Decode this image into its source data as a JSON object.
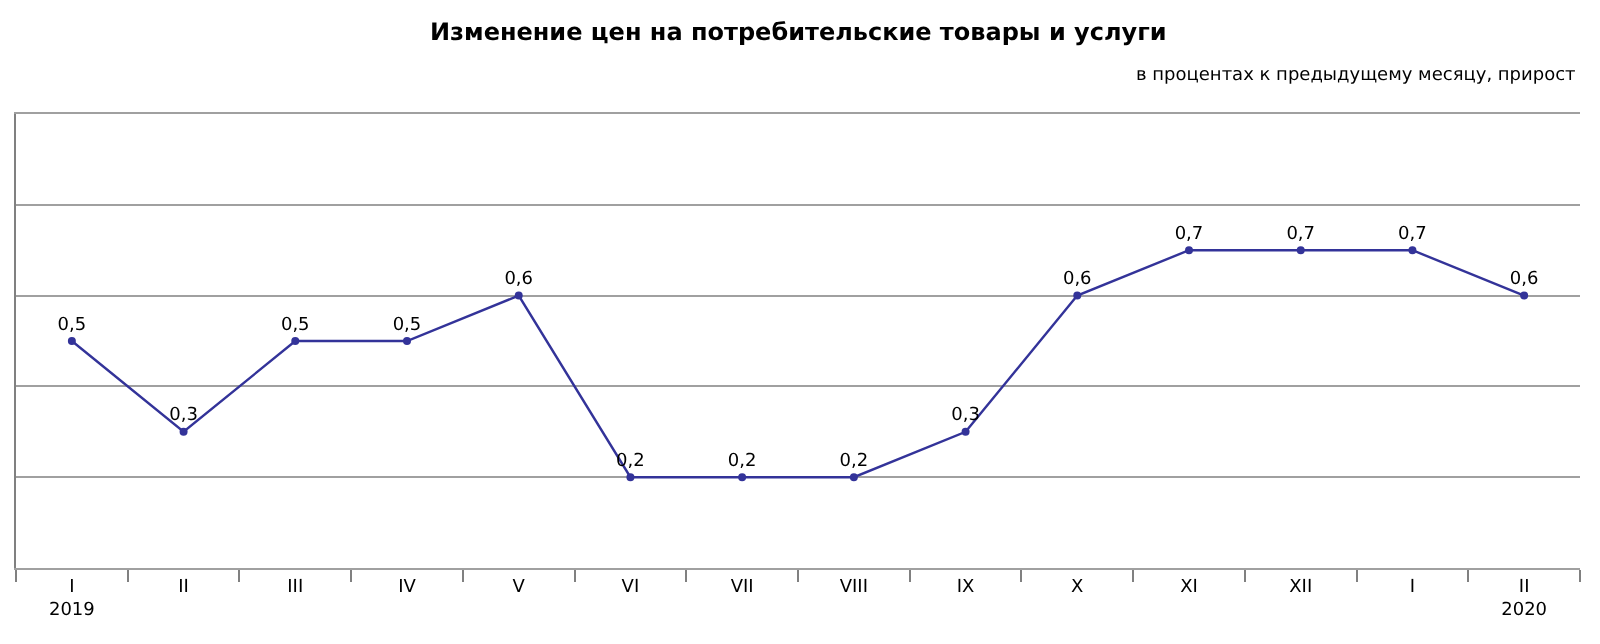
{
  "chart_data": {
    "type": "line",
    "title": "Изменение цен на потребительские товары и услуги",
    "subtitle": "в процентах к предыдущему месяцу, прирост",
    "categories": [
      "I\n2019",
      "II",
      "III",
      "IV",
      "V",
      "VI",
      "VII",
      "VIII",
      "IX",
      "X",
      "XI",
      "XII",
      "I",
      "II\n2020"
    ],
    "series": [
      {
        "color": "#333399",
        "values": [
          0.5,
          0.3,
          0.5,
          0.5,
          0.6,
          0.2,
          0.2,
          0.2,
          0.3,
          0.6,
          0.7,
          0.7,
          0.7,
          0.6
        ],
        "value_labels": [
          "0,5",
          "0,3",
          "0,5",
          "0,5",
          "0,6",
          "0,2",
          "0,2",
          "0,2",
          "0,3",
          "0,6",
          "0,7",
          "0,7",
          "0,7",
          "0,6"
        ]
      }
    ],
    "ylim": [
      0,
      1.0
    ],
    "yticks": [
      {
        "value": 0,
        "label": null
      },
      {
        "value": 0.2,
        "label": null
      },
      {
        "value": 0.4,
        "label": null
      },
      {
        "value": 0.6,
        "label": null
      },
      {
        "value": 0.8,
        "label": null
      },
      {
        "value": 1.0,
        "label": null
      }
    ],
    "tick_labels": "x",
    "grid": "y",
    "legend": false,
    "marker": "circle",
    "line_style": "solid"
  }
}
